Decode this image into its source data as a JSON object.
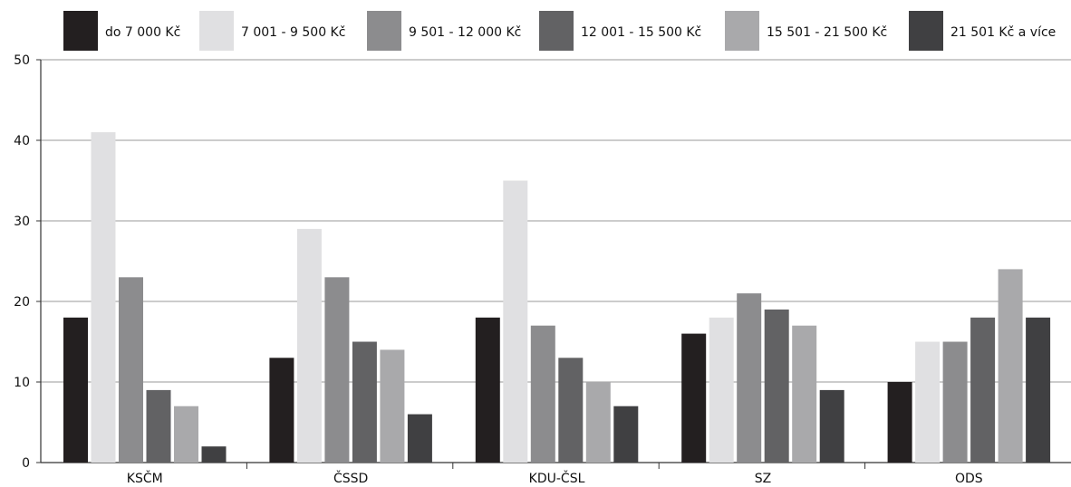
{
  "chart_data": {
    "type": "bar",
    "categories": [
      "KSČM",
      "ČSSD",
      "KDU-ČSL",
      "SZ",
      "ODS"
    ],
    "series": [
      {
        "name": "do 7 000 Kč",
        "color": "#231f20",
        "values": [
          18,
          13,
          18,
          16,
          10
        ]
      },
      {
        "name": "7 001 - 9 500 Kč",
        "color": "#e0e0e2",
        "values": [
          41,
          29,
          35,
          18,
          15
        ]
      },
      {
        "name": "9 501 - 12 000 Kč",
        "color": "#8c8c8e",
        "values": [
          23,
          23,
          17,
          21,
          15
        ]
      },
      {
        "name": "12 001 - 15 500 Kč",
        "color": "#626264",
        "values": [
          9,
          15,
          13,
          19,
          18
        ]
      },
      {
        "name": "15 501 - 21 500 Kč",
        "color": "#a9a9ab",
        "values": [
          7,
          14,
          10,
          17,
          24
        ]
      },
      {
        "name": "21 501 Kč a více",
        "color": "#404042",
        "values": [
          2,
          6,
          7,
          9,
          18
        ]
      }
    ],
    "yticks": [
      "0",
      "10",
      "20",
      "30",
      "40",
      "50"
    ],
    "ylim": [
      0,
      50
    ],
    "grid": true,
    "legend": "top"
  }
}
